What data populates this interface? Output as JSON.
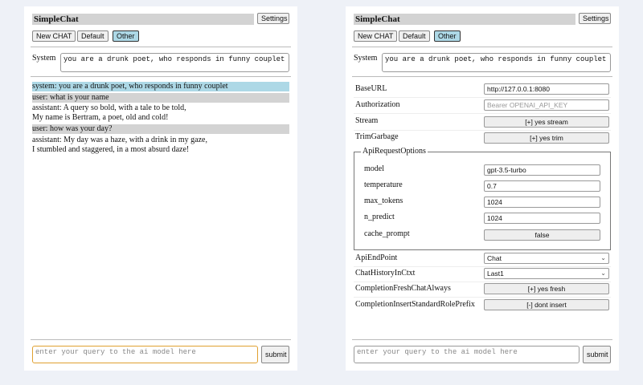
{
  "app": {
    "title": "SimpleChat",
    "settings_label": "Settings",
    "new_chat_label": "New CHAT",
    "default_label": "Default",
    "other_label": "Other",
    "system_label": "System",
    "system_prompt": "you are a drunk poet, who responds in funny couplet",
    "query_placeholder": "enter your query to the ai model here",
    "submit_label": "submit"
  },
  "chat": [
    {
      "role": "system",
      "lines": [
        "system: you are a drunk poet, who responds in funny couplet"
      ]
    },
    {
      "role": "user",
      "lines": [
        "user: what is your name"
      ]
    },
    {
      "role": "assistant",
      "lines": [
        "assistant: A query so bold, with a tale to be told,",
        "My name is Bertram, a poet, old and cold!"
      ]
    },
    {
      "role": "user",
      "lines": [
        "user: how was your day?"
      ]
    },
    {
      "role": "assistant",
      "lines": [
        "assistant: My day was a haze, with a drink in my gaze,",
        "I stumbled and staggered, in a most absurd daze!"
      ]
    }
  ],
  "settings": {
    "base_url": {
      "label": "BaseURL",
      "value": "http://127.0.0.1:8080"
    },
    "authorization": {
      "label": "Authorization",
      "placeholder": "Bearer OPENAI_API_KEY"
    },
    "stream": {
      "label": "Stream",
      "value": "[+] yes stream"
    },
    "trim_garbage": {
      "label": "TrimGarbage",
      "value": "[+] yes trim"
    },
    "api_request_options": {
      "legend": "ApiRequestOptions",
      "model": {
        "label": "model",
        "value": "gpt-3.5-turbo"
      },
      "temperature": {
        "label": "temperature",
        "value": "0.7"
      },
      "max_tokens": {
        "label": "max_tokens",
        "value": "1024"
      },
      "n_predict": {
        "label": "n_predict",
        "value": "1024"
      },
      "cache_prompt": {
        "label": "cache_prompt",
        "value": "false"
      }
    },
    "api_endpoint": {
      "label": "ApiEndPoint",
      "value": "Chat"
    },
    "chat_history": {
      "label": "ChatHistoryInCtxt",
      "value": "Last1"
    },
    "fresh_chat": {
      "label": "CompletionFreshChatAlways",
      "value": "[+] yes fresh"
    },
    "insert_prefix": {
      "label": "CompletionInsertStandardRolePrefix",
      "value": "[-] dont insert"
    }
  },
  "colors": {
    "background": "#eef1f7",
    "system_msg": "#add8e6",
    "user_msg": "#d3d3d3",
    "focus": "#e0a030"
  }
}
